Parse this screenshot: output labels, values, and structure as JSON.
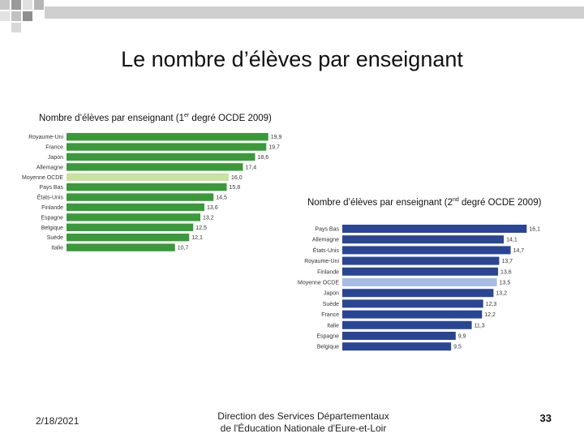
{
  "slide": {
    "title": "Le nombre d’élèves par enseignant",
    "date": "2/18/2021",
    "footer_line1": "Direction des Services Départementaux",
    "footer_line2": "de l'Éducation Nationale d'Eure-et-Loir",
    "page_number": "33"
  },
  "captions": {
    "left_prefix": "Nombre d’élèves par enseignant (1",
    "left_sup": "er",
    "left_suffix": " degré OCDE 2009)",
    "right_prefix": "Nombre d’élèves par enseignant (2",
    "right_sup": "nd",
    "right_suffix": " degré OCDE 2009)"
  },
  "colors": {
    "green": "#3a9a3a",
    "green_highlight": "#c9e2a0",
    "blue": "#2a4593",
    "blue_highlight": "#a8bde3"
  },
  "chart_data": [
    {
      "type": "bar",
      "orientation": "horizontal",
      "title": "Nombre d’élèves par enseignant (1er degré OCDE 2009)",
      "categories": [
        "Royaume-Uni",
        "France",
        "Japon",
        "Allemagne",
        "Moyenne OCDE",
        "Pays Bas",
        "États-Unis",
        "Finlande",
        "Espagne",
        "Belgique",
        "Suède",
        "Italie"
      ],
      "values": [
        19.9,
        19.7,
        18.6,
        17.4,
        16.0,
        15.8,
        14.5,
        13.6,
        13.2,
        12.5,
        12.1,
        10.7
      ],
      "value_labels": [
        "19,9",
        "19,7",
        "18,6",
        "17,4",
        "16,0",
        "15,8",
        "14,5",
        "13,6",
        "13,2",
        "12,5",
        "12,1",
        "10,7"
      ],
      "highlight": "Moyenne OCDE",
      "xlim": [
        0,
        20
      ]
    },
    {
      "type": "bar",
      "orientation": "horizontal",
      "title": "Nombre d’élèves par enseignant (2nd degré OCDE 2009)",
      "categories": [
        "Pays Bas",
        "Allemagne",
        "États-Unis",
        "Royaume-Uni",
        "Finlande",
        "Moyenne OCDE",
        "Japon",
        "Suède",
        "France",
        "Italie",
        "Espagne",
        "Belgique"
      ],
      "values": [
        16.1,
        14.1,
        14.7,
        13.7,
        13.6,
        13.5,
        13.2,
        12.3,
        12.2,
        11.3,
        9.9,
        9.5
      ],
      "value_labels": [
        "16,1",
        "14,1",
        "14,7",
        "13,7",
        "13,6",
        "13,5",
        "13,2",
        "12,3",
        "12,2",
        "11,3",
        "9,9",
        "9,5"
      ],
      "highlight": "Moyenne OCDE",
      "xlim": [
        0,
        16.5
      ]
    }
  ]
}
